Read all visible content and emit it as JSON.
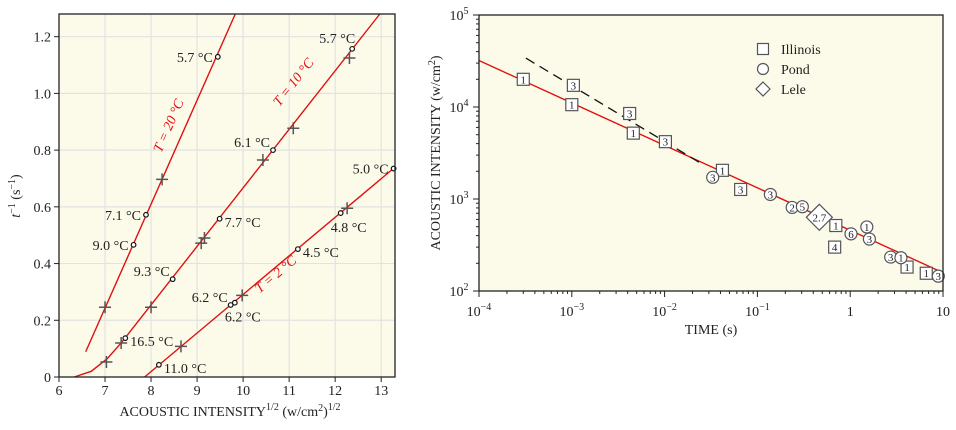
{
  "chart_data": [
    {
      "type": "line",
      "id": "left",
      "xlabel": "ACOUSTIC INTENSITY",
      "xlabel_sup1": "1/2",
      "xlabel_units": "(w/cm",
      "xlabel_units_sup": "2",
      "xlabel_close": ")",
      "xlabel_sup2": "1/2",
      "ylabel": "t",
      "ylabel_sup": "−1",
      "ylabel_units": " (s",
      "ylabel_units_sup": "−1",
      "ylabel_close": ")",
      "xlim": [
        6,
        13.3
      ],
      "ylim": [
        0,
        1.28
      ],
      "xticks": [
        6,
        7,
        8,
        9,
        10,
        11,
        12,
        13
      ],
      "xtick_labels": [
        "6",
        "7",
        "8",
        "9",
        "10",
        "11",
        "12",
        "13"
      ],
      "yticks": [
        0,
        0.2,
        0.4,
        0.6,
        0.8,
        1.0,
        1.2
      ],
      "ytick_labels": [
        "0",
        "0.2",
        "0.4",
        "0.6",
        "0.8",
        "1.0",
        "1.2"
      ],
      "grid": true,
      "line_color": "#e01010",
      "series": [
        {
          "name": "T = 20 °C",
          "line": [
            [
              6.58,
              0.089
            ],
            [
              9.83,
              1.28
            ]
          ],
          "label_at": [
            8.6,
            0.88
          ]
        },
        {
          "name": "T = 10 °C",
          "line": [
            [
              6.33,
              0
            ],
            [
              6.7,
              0.02
            ],
            [
              7.05,
              0.065
            ],
            [
              7.35,
              0.12
            ],
            [
              12.97,
              1.28
            ]
          ],
          "label_at": [
            11.3,
            1.03
          ]
        },
        {
          "name": "T = 2 °C",
          "line": [
            [
              7.86,
              0
            ],
            [
              13.3,
              0.74
            ]
          ],
          "label_at": [
            10.9,
            0.35
          ]
        }
      ],
      "circles": [
        {
          "x": 9.45,
          "y": 1.129,
          "label": "5.7 °C",
          "pos": "left"
        },
        {
          "x": 12.37,
          "y": 1.157,
          "label": "5.7 °C",
          "pos": "above"
        },
        {
          "x": 10.65,
          "y": 0.8,
          "label": "6.1 °C",
          "pos": "upleft"
        },
        {
          "x": 13.27,
          "y": 0.735,
          "label": "5.0 °C",
          "pos": "left"
        },
        {
          "x": 7.89,
          "y": 0.572,
          "label": "7.1 °C",
          "pos": "left"
        },
        {
          "x": 7.62,
          "y": 0.466,
          "label": "9.0 °C",
          "pos": "left"
        },
        {
          "x": 9.49,
          "y": 0.558,
          "label": "7.7 °C",
          "pos": "right"
        },
        {
          "x": 8.47,
          "y": 0.345,
          "label": "9.3 °C",
          "pos": "upleft"
        },
        {
          "x": 7.44,
          "y": 0.137,
          "label": "16.5 °C",
          "pos": "right"
        },
        {
          "x": 8.17,
          "y": 0.043,
          "label": "11.0 °C",
          "pos": "right"
        },
        {
          "x": 9.73,
          "y": 0.254,
          "label": "6.2 °C",
          "pos": "upleft"
        },
        {
          "x": 9.82,
          "y": 0.262,
          "label": "6.2 °C",
          "pos": "below"
        },
        {
          "x": 11.19,
          "y": 0.451,
          "label": "4.5 °C",
          "pos": "right"
        },
        {
          "x": 12.12,
          "y": 0.578,
          "label": "4.8 °C",
          "pos": "below"
        }
      ],
      "crosses": [
        [
          12.31,
          1.125
        ],
        [
          11.09,
          0.877
        ],
        [
          10.43,
          0.765
        ],
        [
          8.24,
          0.697
        ],
        [
          7.0,
          0.246
        ],
        [
          9.09,
          0.472
        ],
        [
          9.16,
          0.49
        ],
        [
          8.0,
          0.246
        ],
        [
          7.35,
          0.12
        ],
        [
          7.03,
          0.053
        ],
        [
          8.65,
          0.108
        ],
        [
          9.98,
          0.288
        ],
        [
          12.26,
          0.595
        ]
      ]
    },
    {
      "type": "scatter",
      "id": "right",
      "xlabel": "TIME (s)",
      "ylabel": "ACOUSTIC INTENSITY (w/cm",
      "ylabel_sup": "2",
      "ylabel_close": ")",
      "xscale": "log",
      "yscale": "log",
      "xlim": [
        0.0001,
        10
      ],
      "ylim": [
        100,
        100000
      ],
      "xtick_labels": [
        {
          "base": "10",
          "exp": "−4"
        },
        {
          "base": "10",
          "exp": "−3"
        },
        {
          "base": "10",
          "exp": "−2"
        },
        {
          "base": "10",
          "exp": "−1"
        },
        {
          "base": "1",
          "exp": ""
        },
        {
          "base": "10",
          "exp": ""
        }
      ],
      "ytick_labels": [
        {
          "base": "10",
          "exp": "2"
        },
        {
          "base": "10",
          "exp": "3"
        },
        {
          "base": "10",
          "exp": "4"
        },
        {
          "base": "10",
          "exp": "5"
        }
      ],
      "grid": false,
      "legend_position": "top-right",
      "legend": [
        {
          "marker": "square",
          "label": "Illinois"
        },
        {
          "marker": "circle",
          "label": "Pond"
        },
        {
          "marker": "diamond",
          "label": "Lele"
        }
      ],
      "fit_line": {
        "color": "#e01010",
        "points": [
          [
            0.0001,
            32000
          ],
          [
            10,
            158
          ]
        ]
      },
      "dashed_line": {
        "color": "#111111",
        "points": [
          [
            0.00032,
            34000
          ],
          [
            0.0245,
            2450
          ]
        ]
      },
      "series": [
        {
          "name": "Illinois",
          "marker": "square",
          "points": [
            {
              "t": 0.0003,
              "I": 20000,
              "n": "1"
            },
            {
              "t": 0.00104,
              "I": 17200,
              "n": "3"
            },
            {
              "t": 0.001,
              "I": 10600,
              "n": "1"
            },
            {
              "t": 0.0042,
              "I": 8500,
              "n": "3"
            },
            {
              "t": 0.0046,
              "I": 5200,
              "n": "1"
            },
            {
              "t": 0.0102,
              "I": 4200,
              "n": "3"
            },
            {
              "t": 0.042,
              "I": 2050,
              "n": "1"
            },
            {
              "t": 0.066,
              "I": 1270,
              "n": "3"
            },
            {
              "t": 0.7,
              "I": 515,
              "n": "1"
            },
            {
              "t": 0.68,
              "I": 300,
              "n": "4"
            },
            {
              "t": 4.1,
              "I": 182,
              "n": "1"
            },
            {
              "t": 6.6,
              "I": 156,
              "n": "1"
            }
          ]
        },
        {
          "name": "Pond",
          "marker": "circle",
          "points": [
            {
              "t": 0.033,
              "I": 1720,
              "n": "3"
            },
            {
              "t": 0.138,
              "I": 1120,
              "n": "3"
            },
            {
              "t": 0.237,
              "I": 810,
              "n": "2"
            },
            {
              "t": 0.305,
              "I": 825,
              "n": "5"
            },
            {
              "t": 1.02,
              "I": 418,
              "n": "6"
            },
            {
              "t": 1.51,
              "I": 497,
              "n": "1"
            },
            {
              "t": 1.61,
              "I": 367,
              "n": "3"
            },
            {
              "t": 2.73,
              "I": 234,
              "n": "3"
            },
            {
              "t": 3.52,
              "I": 230,
              "n": "1"
            },
            {
              "t": 8.9,
              "I": 145,
              "n": "3"
            }
          ]
        },
        {
          "name": "Lele",
          "marker": "diamond",
          "points": [
            {
              "t": 0.465,
              "I": 633,
              "n": "2.7"
            }
          ]
        }
      ]
    }
  ]
}
